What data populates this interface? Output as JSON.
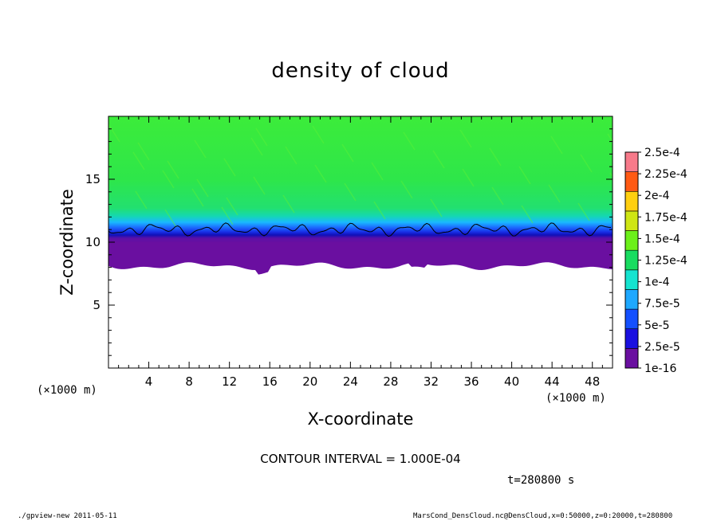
{
  "chart_data": {
    "type": "heatmap",
    "title": "density of cloud",
    "xlabel": "X-coordinate",
    "ylabel": "Z-coordinate",
    "x_unit": "(×1000 m)",
    "z_unit": "(×1000 m)",
    "xlim": [
      0,
      50
    ],
    "ylim": [
      0,
      20
    ],
    "x_ticks": [
      4,
      8,
      12,
      16,
      20,
      24,
      28,
      32,
      36,
      40,
      44,
      48
    ],
    "y_ticks": [
      5,
      10,
      15
    ],
    "colorbar": {
      "labels": [
        "1e-16",
        "2.5e-5",
        "5e-5",
        "7.5e-5",
        "1e-4",
        "1.25e-4",
        "1.5e-4",
        "1.75e-4",
        "2e-4",
        "2.25e-4",
        "2.5e-4"
      ],
      "colors": [
        "#6a0fa0",
        "#1a10e0",
        "#1450ff",
        "#1ea8ff",
        "#15e4d0",
        "#18dc60",
        "#6cf01a",
        "#cfe614",
        "#ffcf10",
        "#ff5a14",
        "#f77a8a"
      ]
    },
    "field": {
      "cloud_base_km": 8.1,
      "upper_region_value": "1.25e-4",
      "contour_level_km": 11.0
    },
    "contour_interval": "CONTOUR INTERVAL = 1.000E-04",
    "time": "t=280800 s"
  },
  "footer": {
    "left": "./gpview-new   2011-05-11",
    "right": "MarsCond_DensCloud.nc@DensCloud,x=0:50000,z=0:20000,t=280800"
  }
}
